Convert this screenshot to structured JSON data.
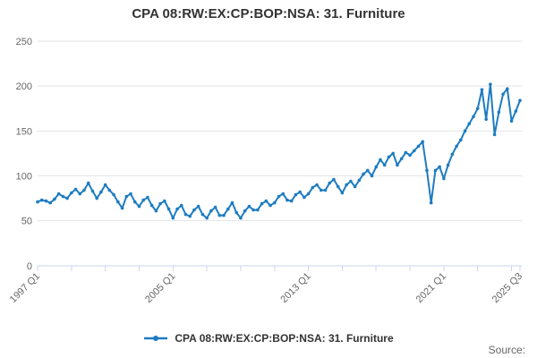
{
  "title": "CPA 08:RW:EX:CP:BOP:NSA: 31. Furniture",
  "legend": {
    "label": "CPA 08:RW:EX:CP:BOP:NSA: 31. Furniture"
  },
  "source_label": "Source:",
  "colors": {
    "series": "#1e7cc0",
    "grid": "#e6e6e6",
    "axis": "#ccd6eb",
    "tick_label": "#666666",
    "title_text": "#333333",
    "legend_text": "#333333"
  },
  "chart_data": {
    "type": "line",
    "title": "CPA 08:RW:EX:CP:BOP:NSA: 31. Furniture",
    "series_name": "CPA 08:RW:EX:CP:BOP:NSA: 31. Furniture",
    "frequency": "quarterly",
    "x_start": "1997 Q1",
    "x_end": "2025 Q3",
    "n_points": 115,
    "x_tick_labels": [
      {
        "label": "1997 Q1",
        "q": 0
      },
      {
        "label": "2005 Q1",
        "q": 32
      },
      {
        "label": "2013 Q1",
        "q": 64
      },
      {
        "label": "2021 Q1",
        "q": 96
      },
      {
        "label": "2025 Q3",
        "q": 114
      }
    ],
    "x_minor_tick_every_quarters": 8,
    "y_ticks": [
      0,
      50,
      100,
      150,
      200,
      250
    ],
    "ylim": [
      0,
      250
    ],
    "grid": "horizontal",
    "legend_position": "bottom",
    "markers": true,
    "values": [
      71,
      73,
      72,
      70,
      74,
      80,
      77,
      75,
      81,
      85,
      80,
      84,
      92,
      83,
      75,
      82,
      90,
      84,
      79,
      71,
      64,
      77,
      80,
      71,
      66,
      73,
      76,
      67,
      61,
      69,
      72,
      63,
      53,
      63,
      67,
      57,
      55,
      62,
      66,
      57,
      53,
      61,
      65,
      56,
      56,
      63,
      70,
      59,
      53,
      61,
      66,
      62,
      62,
      69,
      72,
      67,
      70,
      77,
      80,
      73,
      72,
      79,
      82,
      76,
      80,
      87,
      90,
      84,
      84,
      92,
      96,
      88,
      81,
      90,
      94,
      88,
      95,
      102,
      106,
      100,
      110,
      118,
      112,
      121,
      125,
      112,
      119,
      126,
      123,
      128,
      133,
      138,
      106,
      70,
      106,
      110,
      97,
      112,
      124,
      133,
      140,
      150,
      158,
      166,
      175,
      196,
      163,
      202,
      146,
      171,
      191,
      197,
      161,
      172,
      184
    ]
  }
}
